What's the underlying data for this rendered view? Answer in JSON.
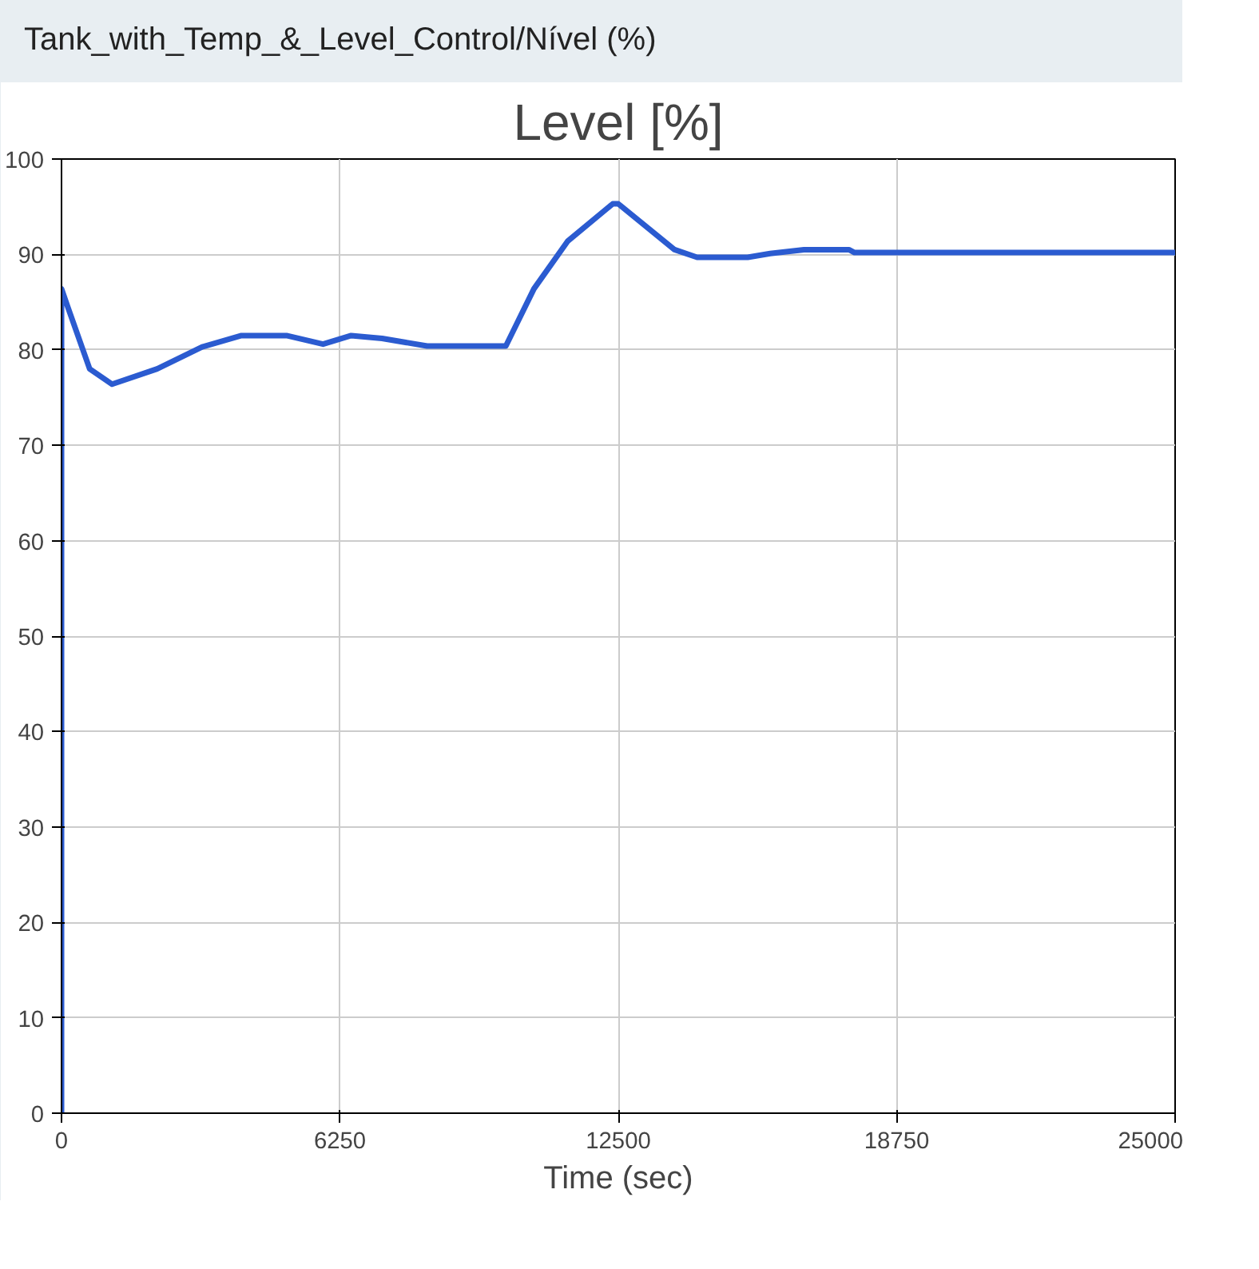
{
  "chart_data": {
    "type": "line",
    "title": "Level [%]",
    "xlabel": "Time (sec)",
    "annotations": [
      "Tank_with_Temp_&_Level_Control/Nível (%)"
    ],
    "x": [
      0,
      0,
      125,
      632,
      1136,
      2146,
      3157,
      4040,
      5050,
      5871,
      6503,
      7197,
      8207,
      9975,
      10606,
      11364,
      12374,
      12500,
      13763,
      14268,
      15405,
      15909,
      16667,
      17677,
      17803,
      25000
    ],
    "series": [
      {
        "color": "#2b5bd0",
        "values": [
          0,
          86.4,
          84.7,
          78,
          76.4,
          78,
          80.3,
          81.5,
          81.5,
          80.6,
          81.5,
          81.2,
          80.4,
          80.4,
          86.4,
          91.4,
          95.3,
          95.3,
          90.5,
          89.7,
          89.7,
          90.1,
          90.5,
          90.5,
          90.2,
          90.2
        ]
      }
    ],
    "xlim": [
      0,
      25000
    ],
    "ylim": [
      0,
      100
    ],
    "xticks": [
      0,
      6250,
      12500,
      18750,
      25000
    ],
    "yticks": [
      0,
      10,
      20,
      30,
      40,
      50,
      60,
      70,
      80,
      90,
      100
    ],
    "grid": true,
    "marker": "none",
    "line_style": "solid"
  }
}
